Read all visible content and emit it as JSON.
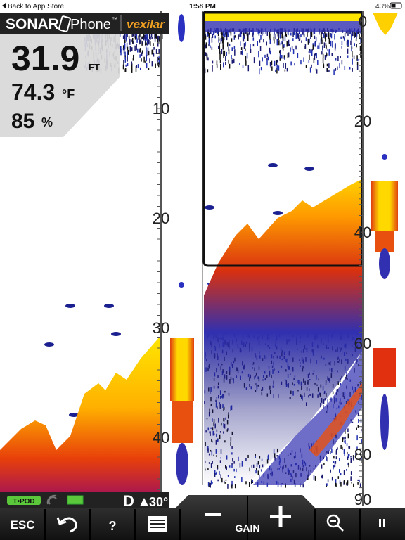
{
  "status_bar": {
    "back": "Back to App Store",
    "time": "1:58 PM",
    "battery": "43%"
  },
  "brand": {
    "sonar": "SONAR",
    "phone": "Phone",
    "tm": "™",
    "vexilar": "vexilar"
  },
  "readouts": {
    "depth": "31.9",
    "depth_unit": "FT",
    "temperature": "74.3",
    "temperature_unit": "°F",
    "signal": "85",
    "signal_unit": "%"
  },
  "left_scale": [
    "10",
    "20",
    "30",
    "40"
  ],
  "right_scale": [
    "0",
    "20",
    "40",
    "60",
    "80",
    "90"
  ],
  "status": {
    "tpod": "T•POD",
    "mode": "D",
    "angle": "30°"
  },
  "toolbar": {
    "esc": "ESC",
    "help": "?",
    "gain": "GAIN"
  }
}
